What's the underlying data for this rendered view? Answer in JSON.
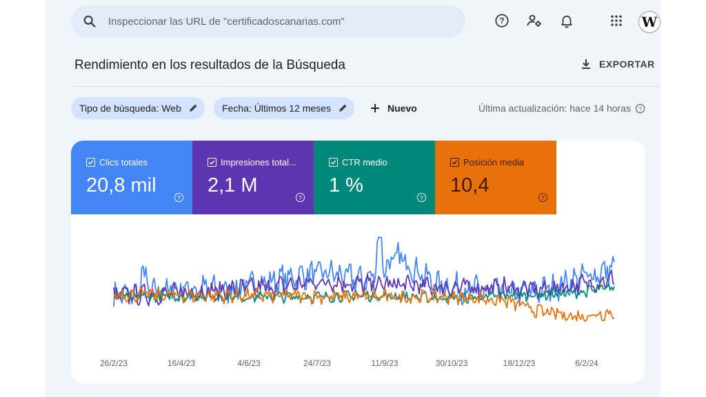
{
  "search": {
    "placeholder": "Inspeccionar las URL de \"certificadoscanarias.com\""
  },
  "topbar_icons": [
    "help-icon",
    "manage-users-icon",
    "bell-icon",
    "apps-grid-icon"
  ],
  "account": {
    "avatar_letter": "W"
  },
  "page": {
    "title": "Rendimiento en los resultados de la Búsqueda",
    "export_label": "EXPORTAR"
  },
  "filters": {
    "search_type": "Tipo de búsqueda: Web",
    "date": "Fecha: Últimos 12 meses",
    "new_label": "Nuevo",
    "last_update": "Última actualización: hace 14 horas"
  },
  "metrics": [
    {
      "label": "Clics totales",
      "value": "20,8 mil",
      "color": "#4285f4",
      "text_color": "#ffffff"
    },
    {
      "label": "Impresiones total...",
      "value": "2,1 M",
      "color": "#5e35b1",
      "text_color": "#ffffff"
    },
    {
      "label": "CTR medio",
      "value": "1 %",
      "color": "#00897b",
      "text_color": "#ffffff"
    },
    {
      "label": "Posición media",
      "value": "10,4",
      "color": "#e8710a",
      "text_color": "#3c1a00"
    }
  ],
  "chart_data": {
    "type": "line",
    "x_ticks": [
      "26/2/23",
      "16/4/23",
      "4/6/23",
      "24/7/23",
      "11/9/23",
      "30/10/23",
      "18/12/23",
      "6/2/24"
    ],
    "y_axis_visible": false,
    "grid": false,
    "series": [
      {
        "name": "Clics totales",
        "color": "#4285f4",
        "trend": [
          0.45,
          0.48,
          0.52,
          0.5,
          0.55,
          0.62,
          0.66,
          0.58,
          0.8,
          0.55,
          0.5,
          0.47,
          0.5,
          0.6,
          0.7
        ]
      },
      {
        "name": "Impresiones totales",
        "color": "#5e35b1",
        "trend": [
          0.45,
          0.46,
          0.48,
          0.5,
          0.52,
          0.55,
          0.58,
          0.55,
          0.55,
          0.53,
          0.52,
          0.52,
          0.5,
          0.55,
          0.6
        ]
      },
      {
        "name": "CTR medio",
        "color": "#00897b",
        "trend": [
          0.45,
          0.44,
          0.45,
          0.44,
          0.44,
          0.44,
          0.44,
          0.45,
          0.44,
          0.43,
          0.43,
          0.45,
          0.46,
          0.48,
          0.52
        ]
      },
      {
        "name": "Posición media",
        "color": "#e8710a",
        "trend": [
          0.46,
          0.46,
          0.45,
          0.45,
          0.45,
          0.45,
          0.44,
          0.44,
          0.44,
          0.44,
          0.43,
          0.4,
          0.3,
          0.26,
          0.3
        ]
      }
    ]
  }
}
